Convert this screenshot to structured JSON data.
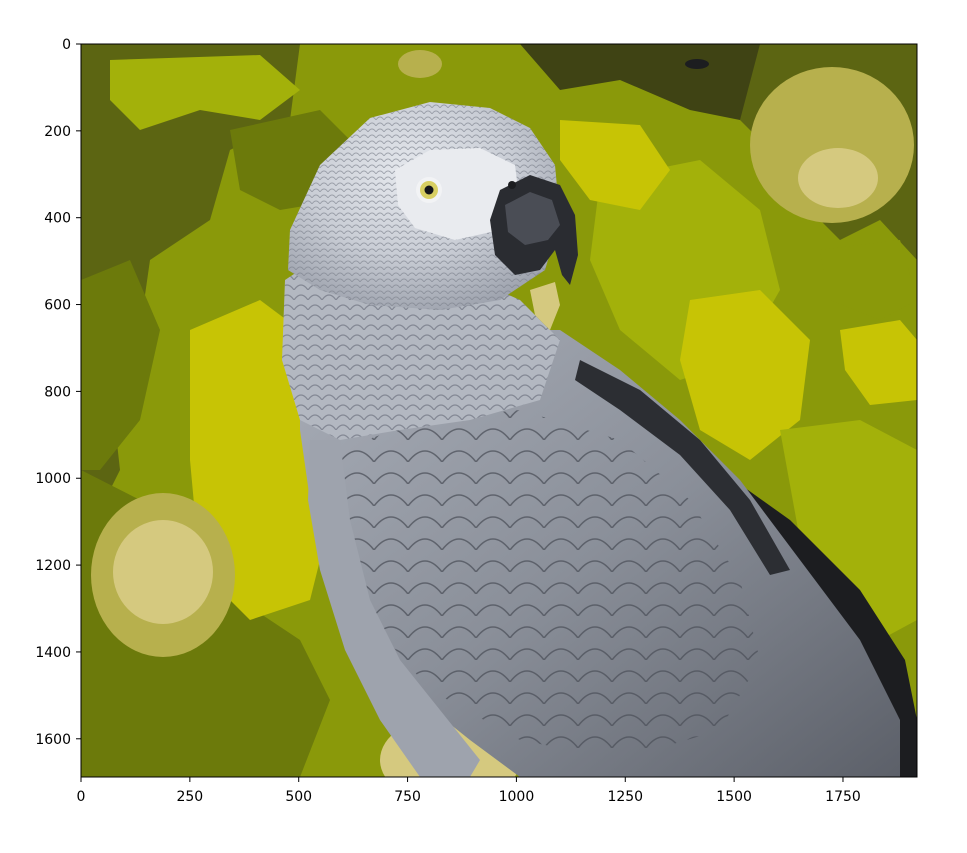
{
  "figure": {
    "kind": "matplotlib imshow of a posterized photograph",
    "image_subject": "African grey parrot against yellow-green bokeh foliage",
    "palette": {
      "darkest": "#3f4314",
      "dark": "#5c6512",
      "olive": "#6c7a0b",
      "green": "#8a990a",
      "lime": "#a3b10a",
      "yellow": "#c7c405",
      "khaki": "#b7b04d",
      "cream": "#d5c97f",
      "feather_white": "#d7dbe2",
      "feather_light": "#aeb3bd",
      "feather_mid": "#858a95",
      "feather_dark": "#5a5e67",
      "feather_black": "#1c1d20",
      "eye_yellow": "#d8cf62",
      "frame": "#000000"
    }
  },
  "chart_data": {
    "type": "image",
    "title": "",
    "xlabel": "",
    "ylabel": "",
    "xlim": [
      0,
      1920
    ],
    "ylim": [
      1688,
      0
    ],
    "x_ticks": [
      0,
      250,
      500,
      750,
      1000,
      1250,
      1500,
      1750
    ],
    "y_ticks": [
      0,
      200,
      400,
      600,
      800,
      1000,
      1200,
      1400,
      1600
    ],
    "x_tick_labels": [
      "0",
      "250",
      "500",
      "750",
      "1000",
      "1250",
      "1500",
      "1750"
    ],
    "y_tick_labels": [
      "0",
      "200",
      "400",
      "600",
      "800",
      "1000",
      "1200",
      "1400",
      "1600"
    ],
    "grid": false
  }
}
